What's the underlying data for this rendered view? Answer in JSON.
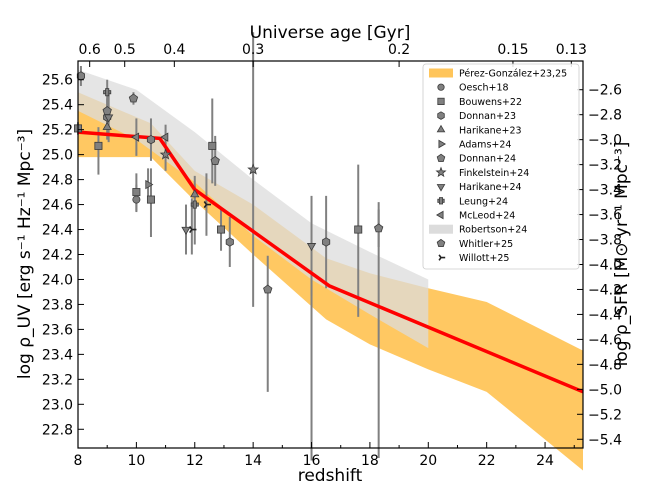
{
  "chart_data": {
    "type": "scatter",
    "title": "",
    "xlabel": "redshift",
    "ylabel_left": "log ρ_UV [erg s⁻¹ Hz⁻¹ Mpc⁻³]",
    "ylabel_right": "log ρ_SFR [M⊙ yr⁻¹ Mpc⁻³]",
    "xlabel_top": "Universe age [Gyr]",
    "xlim": [
      8,
      25.3
    ],
    "ylim": [
      22.65,
      25.75
    ],
    "right_axis_offset": -28.12,
    "x_ticks": [
      8,
      10,
      12,
      14,
      16,
      18,
      20,
      22,
      24
    ],
    "y_ticks": [
      22.8,
      23.0,
      23.2,
      23.4,
      23.6,
      23.8,
      24.0,
      24.2,
      24.4,
      24.6,
      24.8,
      25.0,
      25.2,
      25.4,
      25.6
    ],
    "y_ticks_right": [
      -5.4,
      -5.2,
      -5.0,
      -4.8,
      -4.6,
      -4.4,
      -4.2,
      -4.0,
      -3.8,
      -3.6,
      -3.4,
      -3.2,
      -3.0,
      -2.8,
      -2.6
    ],
    "top_ticks": [
      {
        "label": "0.6",
        "z": 8.4
      },
      {
        "label": "0.5",
        "z": 9.6
      },
      {
        "label": "0.4",
        "z": 11.3
      },
      {
        "label": "0.3",
        "z": 14.0
      },
      {
        "label": "0.2",
        "z": 19.0
      },
      {
        "label": "0.15",
        "z": 22.9
      },
      {
        "label": "0.13",
        "z": 24.9
      }
    ],
    "bands": [
      {
        "name": "Pérez-González+23,25",
        "color": "#ffc55a",
        "upper": [
          [
            8,
            25.5
          ],
          [
            10.5,
            25.25
          ],
          [
            12,
            24.87
          ],
          [
            14,
            24.6
          ],
          [
            16.5,
            24.17
          ],
          [
            18,
            24.05
          ],
          [
            20,
            23.93
          ],
          [
            22,
            23.82
          ],
          [
            25.3,
            23.43
          ]
        ],
        "lower": [
          [
            8,
            24.98
          ],
          [
            10.5,
            24.98
          ],
          [
            12,
            24.63
          ],
          [
            14,
            24.2
          ],
          [
            16.5,
            23.68
          ],
          [
            18,
            23.48
          ],
          [
            20,
            23.28
          ],
          [
            22,
            23.1
          ],
          [
            25.3,
            22.47
          ]
        ]
      },
      {
        "name": "Robertson+24",
        "color": "#dcdcdc",
        "upper": [
          [
            8,
            25.68
          ],
          [
            10,
            25.52
          ],
          [
            12,
            25.18
          ],
          [
            14,
            24.8
          ],
          [
            16,
            24.45
          ],
          [
            18,
            24.22
          ],
          [
            20,
            24.0
          ]
        ],
        "lower": [
          [
            8,
            25.35
          ],
          [
            10,
            25.12
          ],
          [
            12,
            24.78
          ],
          [
            14,
            24.35
          ],
          [
            16,
            24.0
          ],
          [
            18,
            23.72
          ],
          [
            20,
            23.45
          ]
        ]
      }
    ],
    "series": [
      {
        "name": "Pérez-González+23,25 (median)",
        "type": "line",
        "color": "#ff0000",
        "x": [
          8,
          10.8,
          12,
          16.6,
          25.3
        ],
        "y": [
          25.18,
          25.13,
          24.72,
          23.95,
          23.1
        ]
      },
      {
        "name": "Oesch+18",
        "marker": "circle",
        "points": [
          [
            10,
            24.64,
            0.12,
            0.1
          ]
        ]
      },
      {
        "name": "Bouwens+22",
        "marker": "square",
        "points": [
          [
            8,
            25.21,
            0.05,
            0.05
          ],
          [
            8.7,
            25.07,
            0.15,
            0.23
          ],
          [
            10,
            24.7,
            0.15,
            0.15
          ],
          [
            10.5,
            24.64,
            0.25,
            0.3
          ],
          [
            12.6,
            25.07,
            0.38,
            0.3
          ],
          [
            12.9,
            24.4,
            0.17,
            0.17
          ],
          [
            17.6,
            24.4,
            0.52,
            0.7
          ]
        ]
      },
      {
        "name": "Donnan+23",
        "marker": "hexagon",
        "points": [
          [
            8.1,
            25.63,
            0.08,
            0.08
          ],
          [
            9.0,
            25.3,
            0.1,
            0.1
          ],
          [
            10.5,
            25.12,
            0.17,
            0.17
          ],
          [
            13.2,
            24.3,
            0.2,
            0.2
          ],
          [
            16.5,
            24.3,
            0.37,
            0.37
          ]
        ]
      },
      {
        "name": "Harikane+23",
        "marker": "triangle-up",
        "points": [
          [
            9.0,
            25.22,
            0.1,
            0.1
          ],
          [
            12.0,
            24.68,
            0.15,
            0.4
          ]
        ]
      },
      {
        "name": "Adams+24",
        "marker": "triangle-right",
        "points": [
          [
            10.4,
            24.76,
            0.13,
            0.13
          ]
        ]
      },
      {
        "name": "Donnan+24",
        "marker": "pentagon",
        "points": [
          [
            9.0,
            25.35,
            0.1,
            0.1
          ],
          [
            9.9,
            25.45,
            0.05,
            0.05
          ],
          [
            14.5,
            23.92,
            0.27,
            0.82
          ]
        ]
      },
      {
        "name": "Finkelstein+24",
        "marker": "star",
        "points": [
          [
            11.0,
            25.0,
            0.13,
            0.13
          ],
          [
            14.0,
            24.88,
            1.1,
            1.1
          ]
        ]
      },
      {
        "name": "Harikane+24",
        "marker": "triangle-down",
        "points": [
          [
            9.05,
            25.3,
            0.2,
            0.2
          ],
          [
            11.7,
            24.4,
            0.2,
            0.2
          ],
          [
            16.0,
            24.27,
            0.4,
            0.4
          ]
        ]
      },
      {
        "name": "Leung+24",
        "marker": "plus",
        "points": [
          [
            9.0,
            25.5,
            0.1,
            0.1
          ],
          [
            12.0,
            24.6,
            0.15,
            0.2
          ]
        ]
      },
      {
        "name": "McLeod+24",
        "marker": "triangle-left",
        "points": [
          [
            10.0,
            25.14,
            0.15,
            0.15
          ],
          [
            11.0,
            25.14,
            0.1,
            0.1
          ]
        ]
      },
      {
        "name": "Robertson+24",
        "marker": "none",
        "points": [
          [
            16.0,
            23.6,
            0.4,
            1.05
          ],
          [
            18.3,
            24.42,
            0.2,
            1.85
          ]
        ]
      },
      {
        "name": "Whitler+25",
        "marker": "pentagon",
        "points": [
          [
            12.7,
            24.95,
            0.2,
            0.2
          ],
          [
            18.3,
            24.41,
            0.15,
            0.15
          ]
        ]
      },
      {
        "name": "Willott+25",
        "marker": "tri-right",
        "points": [
          [
            11.9,
            24.4,
            0.25,
            0.2
          ],
          [
            12.4,
            24.6,
            0.25,
            0.25
          ]
        ]
      }
    ],
    "legend": {
      "position": "top-right",
      "entries": [
        {
          "label": "Pérez-González+23,25",
          "marker": "band",
          "color": "#ffc55a"
        },
        {
          "label": "Oesch+18",
          "marker": "circle"
        },
        {
          "label": "Bouwens+22",
          "marker": "square"
        },
        {
          "label": "Donnan+23",
          "marker": "hexagon"
        },
        {
          "label": "Harikane+23",
          "marker": "triangle-up"
        },
        {
          "label": "Adams+24",
          "marker": "triangle-right"
        },
        {
          "label": "Donnan+24",
          "marker": "pentagon"
        },
        {
          "label": "Finkelstein+24",
          "marker": "star"
        },
        {
          "label": "Harikane+24",
          "marker": "triangle-down"
        },
        {
          "label": "Leung+24",
          "marker": "plus"
        },
        {
          "label": "McLeod+24",
          "marker": "triangle-left"
        },
        {
          "label": "Robertson+24",
          "marker": "band",
          "color": "#dcdcdc"
        },
        {
          "label": "Whitler+25",
          "marker": "pentagon"
        },
        {
          "label": "Willott+25",
          "marker": "tri-right"
        }
      ]
    },
    "colors": {
      "marker_fill": "#808080",
      "marker_edge": "#3a3a3a",
      "errorbar": "#808080",
      "median_line": "#ff0000"
    }
  }
}
